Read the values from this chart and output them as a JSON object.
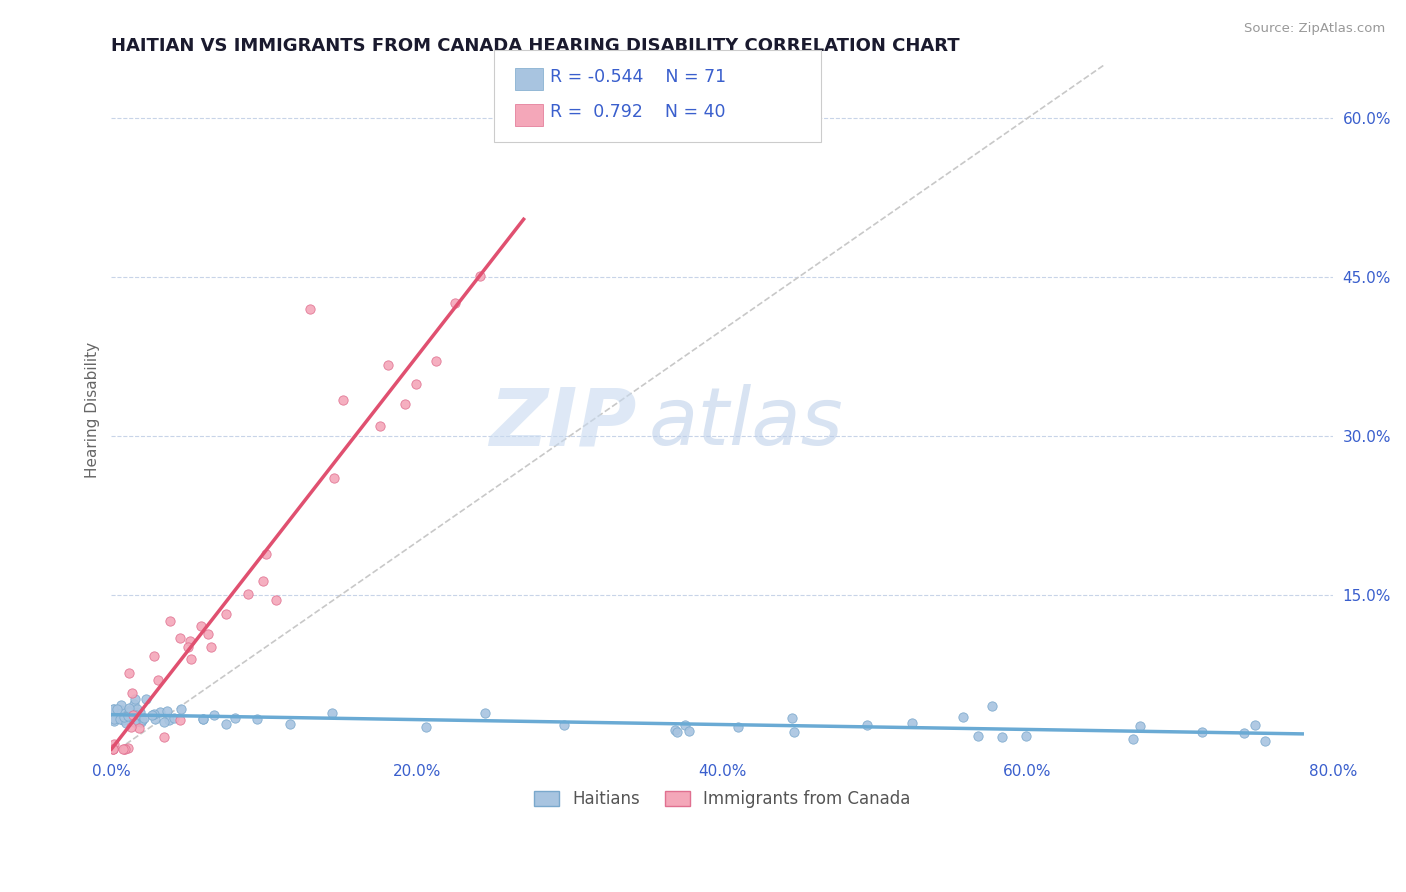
{
  "title": "HAITIAN VS IMMIGRANTS FROM CANADA HEARING DISABILITY CORRELATION CHART",
  "source": "Source: ZipAtlas.com",
  "ylabel": "Hearing Disability",
  "xlim": [
    0.0,
    0.8
  ],
  "ylim": [
    0.0,
    0.65
  ],
  "xtick_labels": [
    "0.0%",
    "20.0%",
    "40.0%",
    "60.0%",
    "80.0%"
  ],
  "xtick_vals": [
    0.0,
    0.2,
    0.4,
    0.6,
    0.8
  ],
  "ytick_labels": [
    "15.0%",
    "30.0%",
    "45.0%",
    "60.0%"
  ],
  "ytick_vals": [
    0.15,
    0.3,
    0.45,
    0.6
  ],
  "haitian_color": "#a8c4e0",
  "haitian_edge": "#7aa8cc",
  "canada_color": "#f4a7b9",
  "canada_edge": "#e07090",
  "trend_haitian_color": "#6aaad4",
  "trend_canada_color": "#e05070",
  "diagonal_color": "#c8c8c8",
  "R_haitian": -0.544,
  "N_haitian": 71,
  "R_canada": 0.792,
  "N_canada": 40,
  "legend_label_haitian": "Haitians",
  "legend_label_canada": "Immigrants from Canada",
  "background_color": "#ffffff",
  "grid_color": "#c8d4e8",
  "title_color": "#1a1a2e",
  "axis_label_color": "#3a5fcd",
  "watermark_zip_color": "#c8daf0",
  "watermark_atlas_color": "#b8cce8"
}
